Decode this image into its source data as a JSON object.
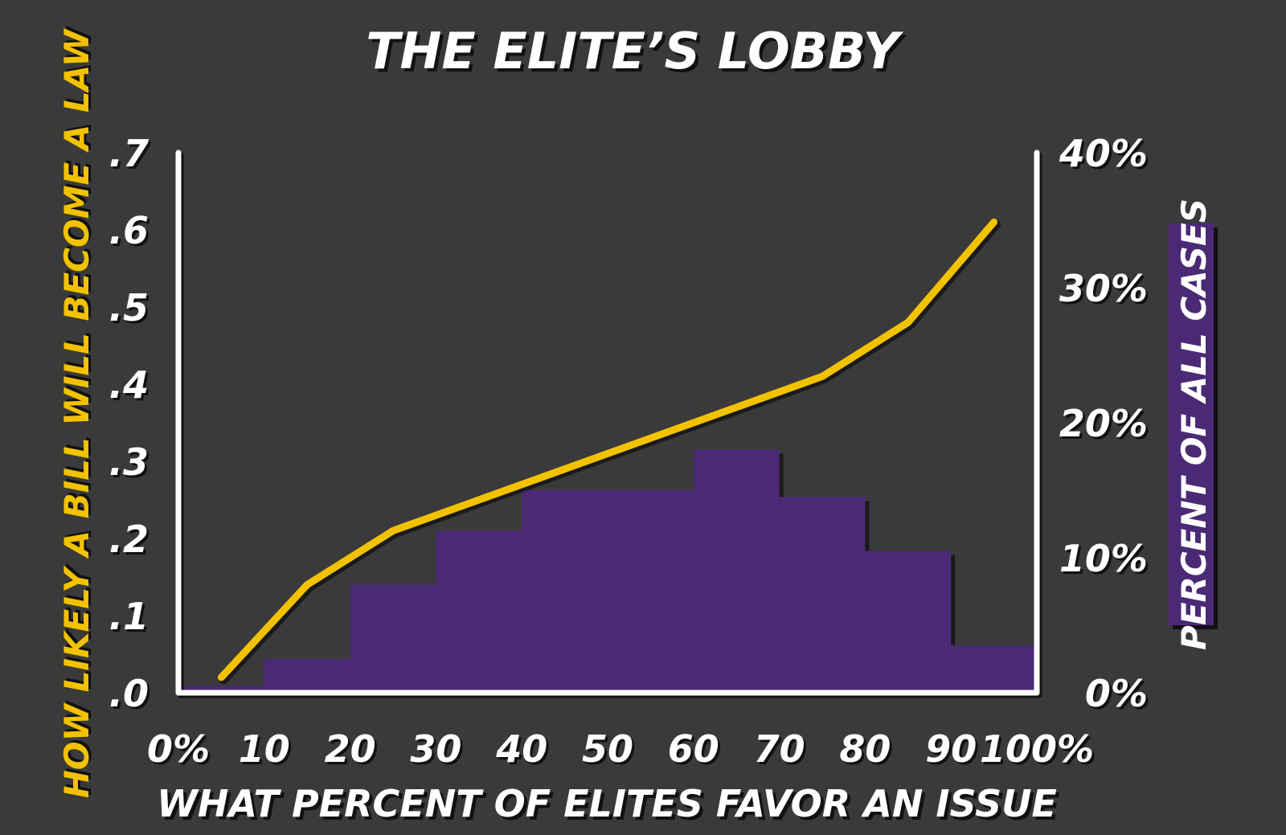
{
  "chart_data": {
    "type": "bar",
    "title": "THE ELITE’S LOBBY",
    "xlabel": "WHAT PERCENT OF ELITES FAVOR AN ISSUE",
    "ylabel": "HOW LIKELY A BILL WILL BECOME A LAW",
    "ylabel_right": "PERCENT OF ALL CASES",
    "x_tick_labels": [
      "0%",
      "10",
      "20",
      "30",
      "40",
      "50",
      "60",
      "70",
      "80",
      "90",
      "100%"
    ],
    "x_ticks": [
      0,
      10,
      20,
      30,
      40,
      50,
      60,
      70,
      80,
      90,
      100
    ],
    "xlim": [
      0,
      100
    ],
    "y_tick_labels": [
      ".0",
      ".1",
      ".2",
      ".3",
      ".4",
      ".5",
      ".6",
      ".7"
    ],
    "y_ticks": [
      0,
      0.1,
      0.2,
      0.3,
      0.4,
      0.5,
      0.6,
      0.7
    ],
    "ylim": [
      0,
      0.7
    ],
    "y2_tick_labels": [
      "0%",
      "10%",
      "20%",
      "30%",
      "40%"
    ],
    "y2_ticks": [
      0,
      10,
      20,
      30,
      40
    ],
    "y2lim": [
      0,
      40
    ],
    "series": [
      {
        "type": "bar",
        "axis": "right",
        "bins": [
          [
            0,
            10
          ],
          [
            10,
            20
          ],
          [
            20,
            30
          ],
          [
            30,
            40
          ],
          [
            40,
            50
          ],
          [
            50,
            60
          ],
          [
            60,
            70
          ],
          [
            70,
            80
          ],
          [
            80,
            90
          ],
          [
            90,
            100
          ]
        ],
        "values": [
          0.5,
          2.5,
          8,
          12,
          15,
          15,
          18,
          14.5,
          10.5,
          3.5
        ],
        "color": "#4b2a75"
      },
      {
        "type": "line",
        "axis": "left",
        "x": [
          5,
          15,
          25,
          35,
          45,
          55,
          65,
          75,
          85,
          95
        ],
        "y": [
          0.02,
          0.14,
          0.21,
          0.25,
          0.29,
          0.33,
          0.37,
          0.41,
          0.48,
          0.61
        ],
        "color": "#f2c200"
      }
    ],
    "grid": false,
    "legend": "none",
    "colors": {
      "background": "#3a3a3a",
      "axis": "#ffffff",
      "text": "#ffffff",
      "left_label": "#f2c200",
      "right_label_bg": "#4b2a75",
      "shadow": "#111111"
    }
  }
}
